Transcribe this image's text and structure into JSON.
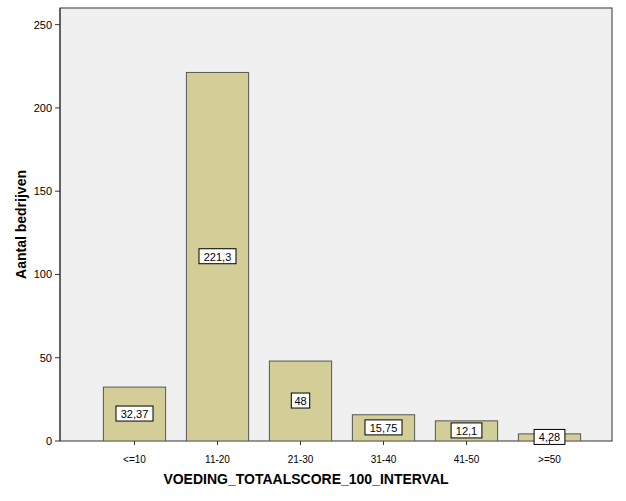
{
  "chart_data": {
    "type": "bar",
    "x_label": "VOEDING_TOTAALSCORE_100_INTERVAL",
    "y_label": "Aantal bedrijven",
    "categories": [
      "<=10",
      "11-20",
      "21-30",
      "31-40",
      "41-50",
      ">=50"
    ],
    "values": [
      32.37,
      221.3,
      48,
      15.75,
      12.1,
      4.28
    ],
    "value_labels": [
      "32,37",
      "221,3",
      "48",
      "15,75",
      "12,1",
      "4,28"
    ],
    "color": "#d3ce97",
    "ylim": [
      0,
      260
    ],
    "yticks": [
      0,
      50,
      100,
      150,
      200,
      250
    ],
    "grid": false,
    "data_labels": true
  }
}
